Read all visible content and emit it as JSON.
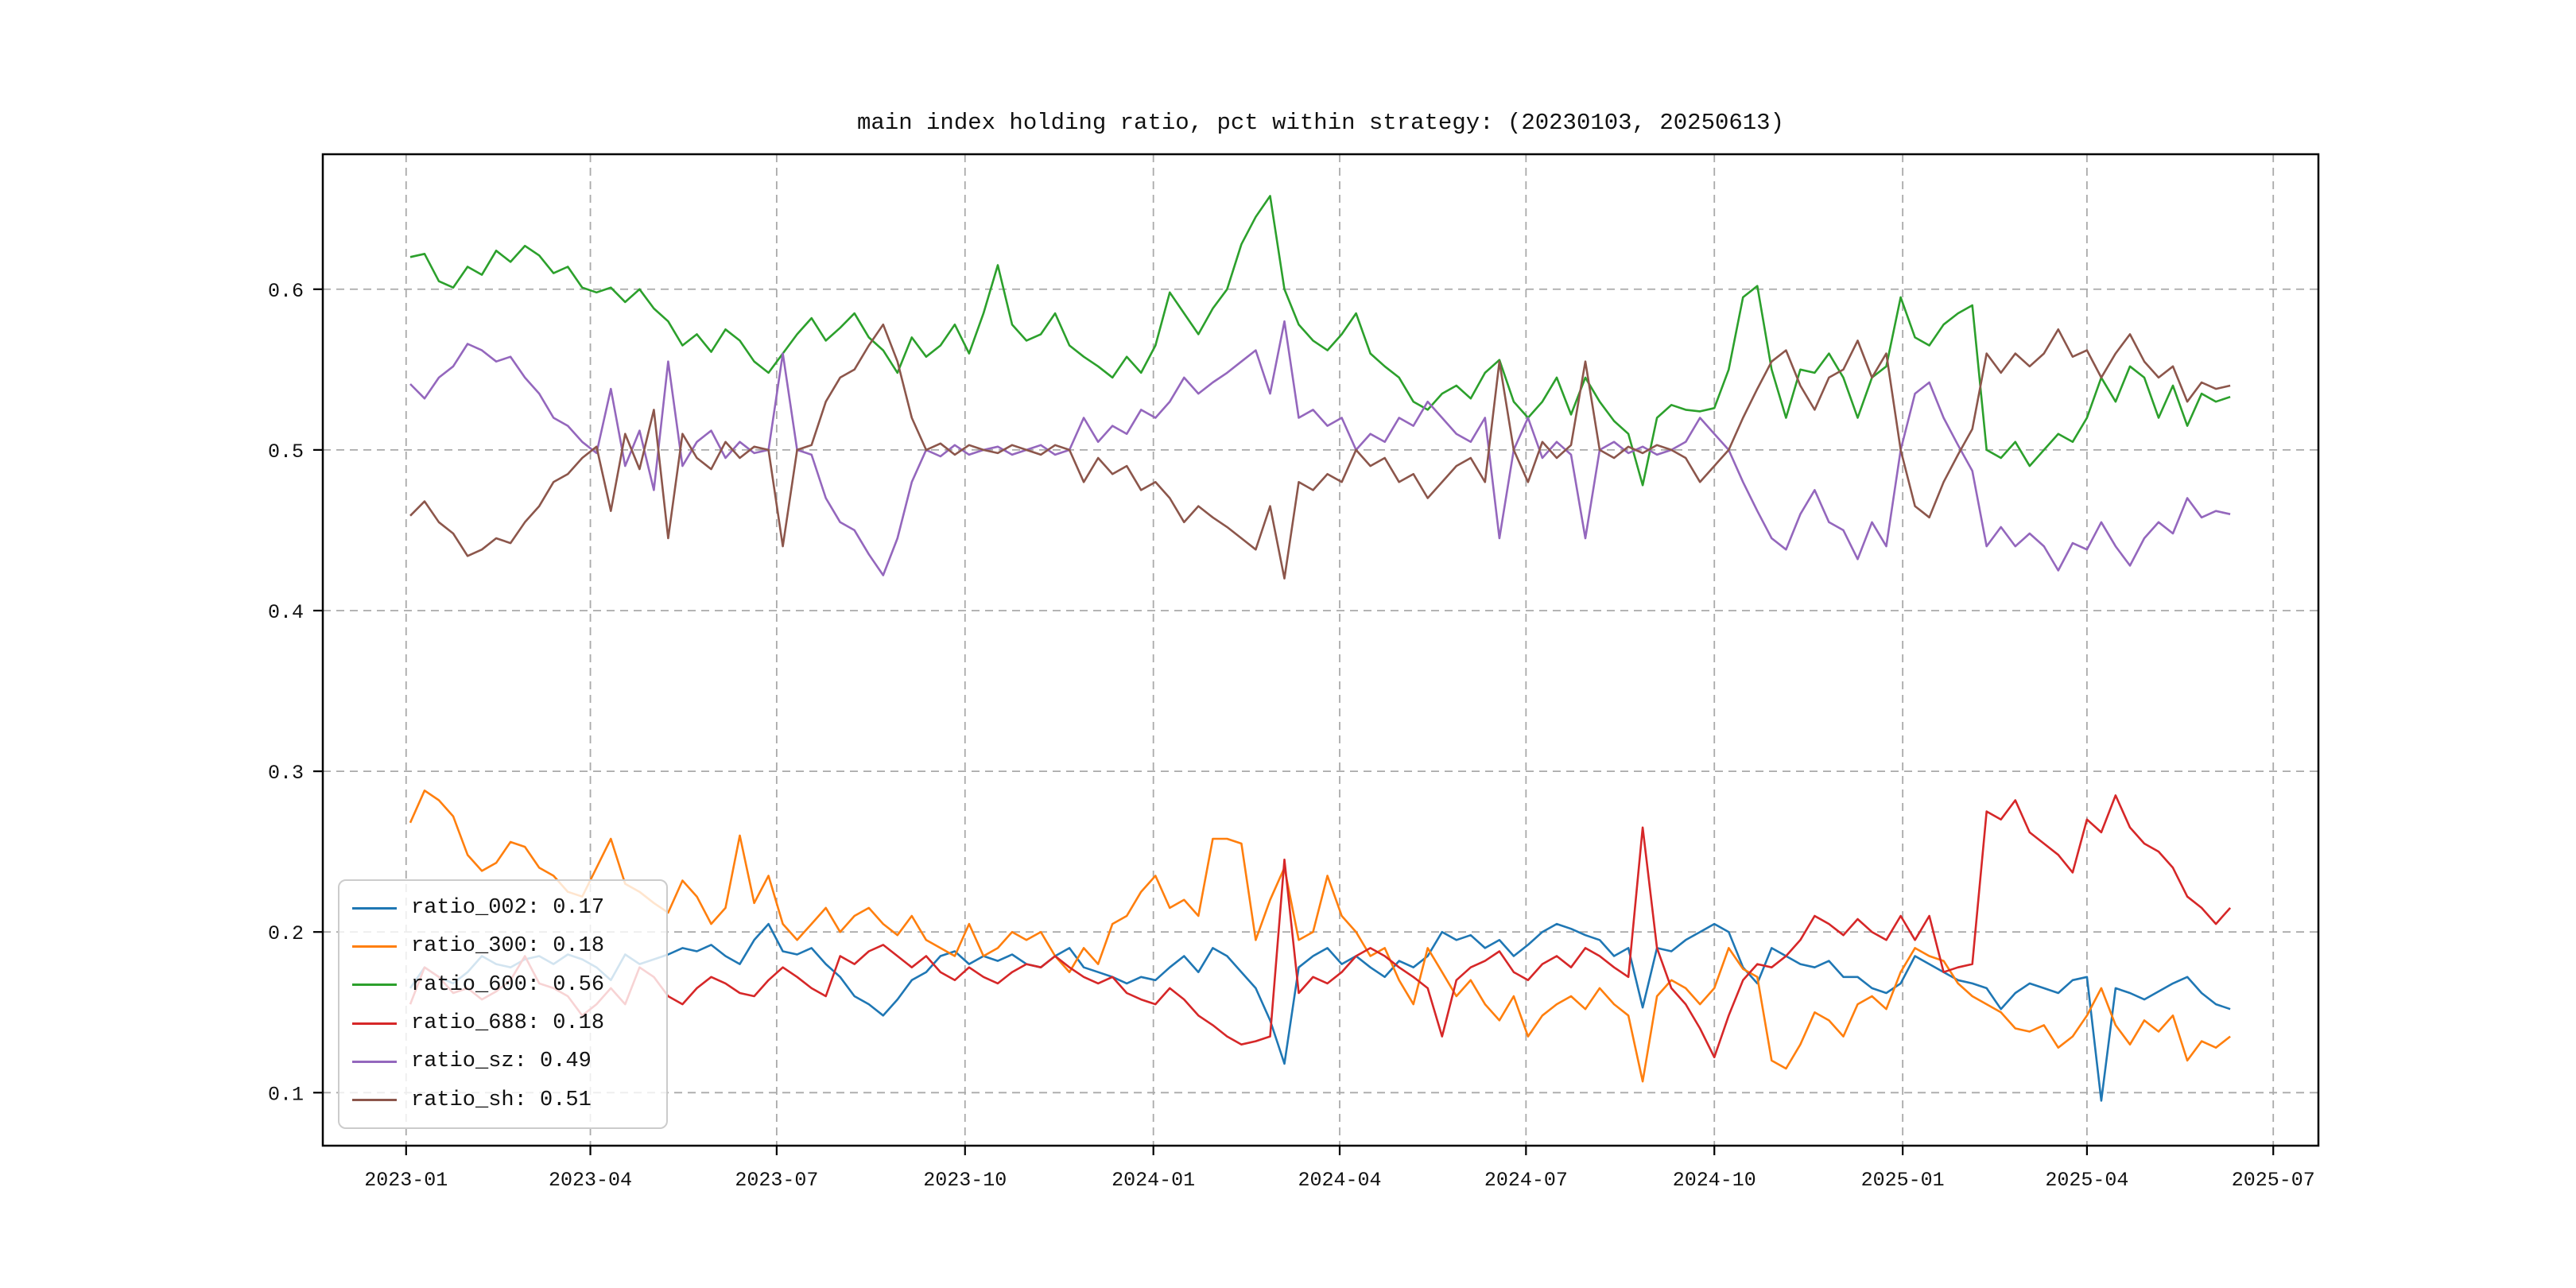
{
  "chart_data": {
    "type": "line",
    "title": "main index holding ratio, pct within strategy: (20230103, 20250613)",
    "grid": true,
    "grid_color": "#aaaaaa",
    "legend_position": "lower-left",
    "ylim": [
      0.067,
      0.684
    ],
    "xlim_weeks": [
      -6.1,
      133.15
    ],
    "y_ticks": [
      {
        "label": "0.1",
        "value": 0.1
      },
      {
        "label": "0.2",
        "value": 0.2
      },
      {
        "label": "0.3",
        "value": 0.3
      },
      {
        "label": "0.4",
        "value": 0.4
      },
      {
        "label": "0.5",
        "value": 0.5
      },
      {
        "label": "0.6",
        "value": 0.6
      }
    ],
    "x_ticks": [
      {
        "label": "2023-01",
        "week": -0.286
      },
      {
        "label": "2023-04",
        "week": 12.571
      },
      {
        "label": "2023-07",
        "week": 25.571
      },
      {
        "label": "2023-10",
        "week": 38.714
      },
      {
        "label": "2024-01",
        "week": 51.857
      },
      {
        "label": "2024-04",
        "week": 64.857
      },
      {
        "label": "2024-07",
        "week": 77.857
      },
      {
        "label": "2024-10",
        "week": 91.0
      },
      {
        "label": "2025-01",
        "week": 104.143
      },
      {
        "label": "2025-04",
        "week": 117.0
      },
      {
        "label": "2025-07",
        "week": 130.0
      }
    ],
    "series": [
      {
        "name": "ratio_002",
        "legend_label": "ratio_002: 0.17",
        "color": "#1f77b4",
        "values": [
          0.165,
          0.178,
          0.172,
          0.168,
          0.175,
          0.185,
          0.18,
          0.178,
          0.183,
          0.185,
          0.18,
          0.186,
          0.183,
          0.178,
          0.17,
          0.186,
          0.18,
          0.183,
          0.186,
          0.19,
          0.188,
          0.192,
          0.185,
          0.18,
          0.195,
          0.205,
          0.188,
          0.186,
          0.19,
          0.18,
          0.172,
          0.16,
          0.155,
          0.148,
          0.158,
          0.17,
          0.175,
          0.185,
          0.188,
          0.18,
          0.185,
          0.182,
          0.186,
          0.18,
          0.178,
          0.185,
          0.19,
          0.178,
          0.175,
          0.172,
          0.168,
          0.172,
          0.17,
          0.178,
          0.185,
          0.175,
          0.19,
          0.185,
          0.175,
          0.165,
          0.145,
          0.118,
          0.178,
          0.185,
          0.19,
          0.18,
          0.185,
          0.178,
          0.172,
          0.182,
          0.178,
          0.185,
          0.2,
          0.195,
          0.198,
          0.19,
          0.195,
          0.185,
          0.192,
          0.2,
          0.205,
          0.202,
          0.198,
          0.195,
          0.185,
          0.19,
          0.153,
          0.19,
          0.188,
          0.195,
          0.2,
          0.205,
          0.2,
          0.178,
          0.168,
          0.19,
          0.185,
          0.18,
          0.178,
          0.182,
          0.172,
          0.172,
          0.165,
          0.162,
          0.168,
          0.185,
          0.18,
          0.175,
          0.17,
          0.168,
          0.165,
          0.152,
          0.162,
          0.168,
          0.165,
          0.162,
          0.17,
          0.172,
          0.095,
          0.165,
          0.162,
          0.158,
          0.163,
          0.168,
          0.172,
          0.162,
          0.155,
          0.152
        ]
      },
      {
        "name": "ratio_300",
        "legend_label": "ratio_300: 0.18",
        "color": "#ff7f0e",
        "values": [
          0.268,
          0.288,
          0.282,
          0.272,
          0.248,
          0.238,
          0.243,
          0.256,
          0.253,
          0.24,
          0.235,
          0.225,
          0.222,
          0.24,
          0.258,
          0.23,
          0.225,
          0.218,
          0.212,
          0.232,
          0.222,
          0.205,
          0.215,
          0.26,
          0.218,
          0.235,
          0.205,
          0.195,
          0.205,
          0.215,
          0.2,
          0.21,
          0.215,
          0.205,
          0.198,
          0.21,
          0.195,
          0.19,
          0.185,
          0.205,
          0.185,
          0.19,
          0.2,
          0.195,
          0.2,
          0.185,
          0.175,
          0.19,
          0.18,
          0.205,
          0.21,
          0.225,
          0.235,
          0.215,
          0.22,
          0.21,
          0.258,
          0.258,
          0.255,
          0.195,
          0.22,
          0.24,
          0.195,
          0.2,
          0.235,
          0.21,
          0.2,
          0.185,
          0.19,
          0.17,
          0.155,
          0.19,
          0.175,
          0.16,
          0.17,
          0.155,
          0.145,
          0.16,
          0.135,
          0.148,
          0.155,
          0.16,
          0.152,
          0.165,
          0.155,
          0.148,
          0.107,
          0.16,
          0.17,
          0.165,
          0.155,
          0.165,
          0.19,
          0.177,
          0.172,
          0.12,
          0.115,
          0.13,
          0.15,
          0.145,
          0.135,
          0.155,
          0.16,
          0.152,
          0.175,
          0.19,
          0.185,
          0.182,
          0.168,
          0.16,
          0.155,
          0.15,
          0.14,
          0.138,
          0.142,
          0.128,
          0.135,
          0.148,
          0.165,
          0.142,
          0.13,
          0.145,
          0.138,
          0.148,
          0.12,
          0.132,
          0.128,
          0.135
        ]
      },
      {
        "name": "ratio_600",
        "legend_label": "ratio_600: 0.56",
        "color": "#2ca02c",
        "values": [
          0.62,
          0.622,
          0.605,
          0.601,
          0.614,
          0.609,
          0.624,
          0.617,
          0.627,
          0.621,
          0.61,
          0.614,
          0.601,
          0.598,
          0.601,
          0.592,
          0.6,
          0.588,
          0.58,
          0.565,
          0.572,
          0.561,
          0.575,
          0.568,
          0.555,
          0.548,
          0.56,
          0.572,
          0.582,
          0.568,
          0.576,
          0.585,
          0.57,
          0.562,
          0.548,
          0.57,
          0.558,
          0.565,
          0.578,
          0.56,
          0.585,
          0.615,
          0.578,
          0.568,
          0.572,
          0.585,
          0.565,
          0.558,
          0.552,
          0.545,
          0.558,
          0.548,
          0.565,
          0.598,
          0.585,
          0.572,
          0.588,
          0.6,
          0.628,
          0.645,
          0.658,
          0.6,
          0.578,
          0.568,
          0.562,
          0.572,
          0.585,
          0.56,
          0.552,
          0.545,
          0.53,
          0.525,
          0.535,
          0.54,
          0.532,
          0.548,
          0.556,
          0.53,
          0.52,
          0.53,
          0.545,
          0.522,
          0.545,
          0.53,
          0.518,
          0.51,
          0.478,
          0.52,
          0.528,
          0.525,
          0.524,
          0.526,
          0.55,
          0.595,
          0.602,
          0.55,
          0.52,
          0.55,
          0.548,
          0.56,
          0.545,
          0.52,
          0.545,
          0.552,
          0.595,
          0.57,
          0.565,
          0.578,
          0.585,
          0.59,
          0.5,
          0.495,
          0.505,
          0.49,
          0.5,
          0.51,
          0.505,
          0.52,
          0.545,
          0.53,
          0.552,
          0.545,
          0.52,
          0.54,
          0.515,
          0.535,
          0.53,
          0.533
        ]
      },
      {
        "name": "ratio_688",
        "legend_label": "ratio_688: 0.18",
        "color": "#d62728",
        "values": [
          0.155,
          0.178,
          0.172,
          0.162,
          0.165,
          0.158,
          0.163,
          0.17,
          0.185,
          0.168,
          0.165,
          0.16,
          0.148,
          0.155,
          0.165,
          0.155,
          0.178,
          0.172,
          0.16,
          0.155,
          0.165,
          0.172,
          0.168,
          0.162,
          0.16,
          0.17,
          0.178,
          0.172,
          0.165,
          0.16,
          0.185,
          0.18,
          0.188,
          0.192,
          0.185,
          0.178,
          0.185,
          0.175,
          0.17,
          0.178,
          0.172,
          0.168,
          0.175,
          0.18,
          0.178,
          0.185,
          0.178,
          0.172,
          0.168,
          0.172,
          0.162,
          0.158,
          0.155,
          0.165,
          0.158,
          0.148,
          0.142,
          0.135,
          0.13,
          0.132,
          0.135,
          0.245,
          0.162,
          0.172,
          0.168,
          0.175,
          0.185,
          0.19,
          0.185,
          0.178,
          0.172,
          0.165,
          0.135,
          0.17,
          0.178,
          0.182,
          0.188,
          0.175,
          0.17,
          0.18,
          0.185,
          0.178,
          0.19,
          0.185,
          0.178,
          0.172,
          0.265,
          0.19,
          0.165,
          0.155,
          0.14,
          0.122,
          0.148,
          0.17,
          0.18,
          0.178,
          0.185,
          0.195,
          0.21,
          0.205,
          0.198,
          0.208,
          0.2,
          0.195,
          0.21,
          0.195,
          0.21,
          0.175,
          0.178,
          0.18,
          0.275,
          0.27,
          0.282,
          0.262,
          0.255,
          0.248,
          0.237,
          0.27,
          0.262,
          0.285,
          0.265,
          0.255,
          0.25,
          0.24,
          0.222,
          0.215,
          0.205,
          0.215
        ]
      },
      {
        "name": "ratio_sz",
        "legend_label": "ratio_sz: 0.49",
        "color": "#9467bd",
        "values": [
          0.541,
          0.532,
          0.545,
          0.552,
          0.566,
          0.562,
          0.555,
          0.558,
          0.545,
          0.535,
          0.52,
          0.515,
          0.505,
          0.498,
          0.538,
          0.49,
          0.512,
          0.475,
          0.555,
          0.49,
          0.505,
          0.512,
          0.495,
          0.505,
          0.498,
          0.5,
          0.56,
          0.5,
          0.497,
          0.47,
          0.455,
          0.45,
          0.435,
          0.422,
          0.445,
          0.48,
          0.5,
          0.496,
          0.503,
          0.497,
          0.5,
          0.502,
          0.497,
          0.5,
          0.503,
          0.497,
          0.5,
          0.52,
          0.505,
          0.515,
          0.51,
          0.525,
          0.52,
          0.53,
          0.545,
          0.535,
          0.542,
          0.548,
          0.555,
          0.562,
          0.535,
          0.58,
          0.52,
          0.525,
          0.515,
          0.52,
          0.5,
          0.51,
          0.505,
          0.52,
          0.515,
          0.53,
          0.52,
          0.51,
          0.505,
          0.52,
          0.445,
          0.5,
          0.52,
          0.495,
          0.505,
          0.497,
          0.445,
          0.5,
          0.505,
          0.498,
          0.502,
          0.497,
          0.5,
          0.505,
          0.52,
          0.51,
          0.5,
          0.48,
          0.462,
          0.445,
          0.438,
          0.46,
          0.475,
          0.455,
          0.45,
          0.432,
          0.455,
          0.44,
          0.5,
          0.535,
          0.542,
          0.52,
          0.503,
          0.487,
          0.44,
          0.452,
          0.44,
          0.448,
          0.44,
          0.425,
          0.442,
          0.438,
          0.455,
          0.44,
          0.428,
          0.445,
          0.455,
          0.448,
          0.47,
          0.458,
          0.462,
          0.46
        ]
      },
      {
        "name": "ratio_sh",
        "legend_label": "ratio_sh: 0.51",
        "color": "#8c564b",
        "values": [
          0.459,
          0.468,
          0.455,
          0.448,
          0.434,
          0.438,
          0.445,
          0.442,
          0.455,
          0.465,
          0.48,
          0.485,
          0.495,
          0.502,
          0.462,
          0.51,
          0.488,
          0.525,
          0.445,
          0.51,
          0.495,
          0.488,
          0.505,
          0.495,
          0.502,
          0.5,
          0.44,
          0.5,
          0.503,
          0.53,
          0.545,
          0.55,
          0.565,
          0.578,
          0.555,
          0.52,
          0.5,
          0.504,
          0.497,
          0.503,
          0.5,
          0.498,
          0.503,
          0.5,
          0.497,
          0.503,
          0.5,
          0.48,
          0.495,
          0.485,
          0.49,
          0.475,
          0.48,
          0.47,
          0.455,
          0.465,
          0.458,
          0.452,
          0.445,
          0.438,
          0.465,
          0.42,
          0.48,
          0.475,
          0.485,
          0.48,
          0.5,
          0.49,
          0.495,
          0.48,
          0.485,
          0.47,
          0.48,
          0.49,
          0.495,
          0.48,
          0.555,
          0.5,
          0.48,
          0.505,
          0.495,
          0.503,
          0.555,
          0.5,
          0.495,
          0.502,
          0.498,
          0.503,
          0.5,
          0.495,
          0.48,
          0.49,
          0.5,
          0.52,
          0.538,
          0.555,
          0.562,
          0.54,
          0.525,
          0.545,
          0.55,
          0.568,
          0.545,
          0.56,
          0.5,
          0.465,
          0.458,
          0.48,
          0.497,
          0.513,
          0.56,
          0.548,
          0.56,
          0.552,
          0.56,
          0.575,
          0.558,
          0.562,
          0.545,
          0.56,
          0.572,
          0.555,
          0.545,
          0.552,
          0.53,
          0.542,
          0.538,
          0.54
        ]
      }
    ]
  }
}
